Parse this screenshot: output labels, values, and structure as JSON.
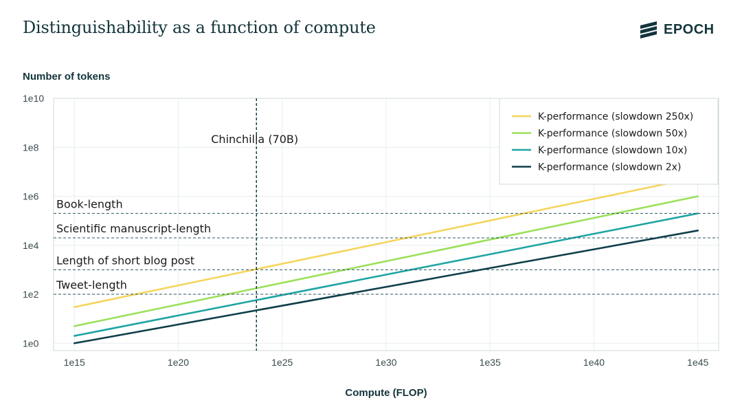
{
  "header": {
    "title": "Distinguishability as a function of compute",
    "logo_text": "EPOCH",
    "logo_icon": "epoch-stripes-icon"
  },
  "chart_data": {
    "type": "line",
    "title": "Distinguishability as a function of compute",
    "xlabel": "Compute (FLOP)",
    "ylabel": "Number of tokens",
    "x_scale": "log10",
    "y_scale": "log10",
    "xlim": [
      100000000000000.0,
      1e+46
    ],
    "ylim": [
      0.5,
      10000000000.0
    ],
    "xticks": [
      {
        "value": 1000000000000000.0,
        "label": "1e15"
      },
      {
        "value": 1e+20,
        "label": "1e20"
      },
      {
        "value": 1e+25,
        "label": "1e25"
      },
      {
        "value": 1e+30,
        "label": "1e30"
      },
      {
        "value": 1e+35,
        "label": "1e35"
      },
      {
        "value": 1e+40,
        "label": "1e40"
      },
      {
        "value": 1e+45,
        "label": "1e45"
      }
    ],
    "yticks": [
      {
        "value": 1,
        "label": "1e0"
      },
      {
        "value": 100,
        "label": "1e2"
      },
      {
        "value": 10000,
        "label": "1e4"
      },
      {
        "value": 1000000,
        "label": "1e6"
      },
      {
        "value": 100000000,
        "label": "1e8"
      },
      {
        "value": 10000000000,
        "label": "1e10"
      }
    ],
    "grid": true,
    "legend_position": "top-right",
    "series": [
      {
        "name": "K-performance (slowdown 250x)",
        "color": "#f5d55c",
        "x": [
          1000000000000000.0,
          1e+45
        ],
        "y": [
          30,
          6000000
        ]
      },
      {
        "name": "K-performance (slowdown 50x)",
        "color": "#9be05a",
        "x": [
          1000000000000000.0,
          1e+45
        ],
        "y": [
          5,
          1000000
        ]
      },
      {
        "name": "K-performance (slowdown 10x)",
        "color": "#1fa5a3",
        "x": [
          1000000000000000.0,
          1e+45
        ],
        "y": [
          2,
          200000
        ]
      },
      {
        "name": "K-performance (slowdown 2x)",
        "color": "#0f3f4a",
        "x": [
          1000000000000000.0,
          1e+45
        ],
        "y": [
          1,
          40000
        ]
      }
    ],
    "hlines": [
      {
        "label": "Book-length",
        "y": 200000
      },
      {
        "label": "Scientific manuscript-length",
        "y": 20000
      },
      {
        "label": "Length of short blog post",
        "y": 1000
      },
      {
        "label": "Tweet-length",
        "y": 100
      }
    ],
    "vlines": [
      {
        "label": "Chinchilla (70B)",
        "x": 5.76e+23
      }
    ]
  }
}
